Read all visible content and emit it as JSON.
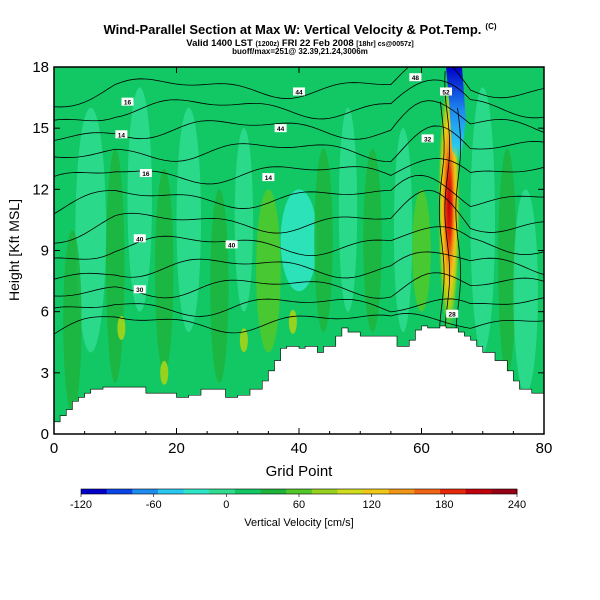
{
  "header": {
    "title": "Wind-Parallel Section at Max W: Vertical Velocity & Pot.Temp.",
    "title_mark": "(C)",
    "valid_main": "Valid 1400 LST",
    "valid_p1": "(1200z)",
    "valid_mid": "FRI 22 Feb 2008",
    "valid_p2": "[18hr] cs@0057z]",
    "location": "buoff/max=251@ 32.39,21.24,3006m"
  },
  "colorbar": {
    "label": "Vertical Velocity [cm/s]",
    "ticks": [
      "-120",
      "-60",
      "0",
      "60",
      "120",
      "180",
      "240"
    ],
    "colors": [
      "#0000c8",
      "#0a46e6",
      "#1e8cf0",
      "#28c8f0",
      "#30e6c8",
      "#30dc90",
      "#12c864",
      "#1eb43c",
      "#52c828",
      "#96d21e",
      "#d2dc1e",
      "#f0c818",
      "#f09614",
      "#f06414",
      "#e6280a",
      "#c0000a",
      "#960014"
    ]
  },
  "chart_data": {
    "type": "heatmap",
    "title": "Wind-Parallel Section at Max W: Vertical Velocity & Pot.Temp.",
    "xlabel": "Grid Point",
    "ylabel": "Height [Kft MSL]",
    "xlim": [
      0,
      80
    ],
    "ylim": [
      0,
      18
    ],
    "xticks": [
      0,
      20,
      40,
      60,
      80
    ],
    "yticks": [
      0,
      3,
      6,
      9,
      12,
      15,
      18
    ],
    "colorbar_range": [
      -120,
      240
    ],
    "colorbar_label": "Vertical Velocity [cm/s]",
    "terrain_top_kft": [
      [
        0,
        0.6
      ],
      [
        1,
        0.9
      ],
      [
        2,
        1.2
      ],
      [
        3,
        1.6
      ],
      [
        4,
        1.8
      ],
      [
        5,
        2.0
      ],
      [
        6,
        2.2
      ],
      [
        8,
        2.3
      ],
      [
        10,
        2.3
      ],
      [
        12,
        2.3
      ],
      [
        15,
        2.0
      ],
      [
        18,
        2.0
      ],
      [
        20,
        1.8
      ],
      [
        22,
        1.9
      ],
      [
        24,
        2.2
      ],
      [
        26,
        2.2
      ],
      [
        28,
        1.8
      ],
      [
        30,
        1.9
      ],
      [
        32,
        2.2
      ],
      [
        34,
        2.6
      ],
      [
        35,
        3.1
      ],
      [
        36,
        3.6
      ],
      [
        37,
        4.2
      ],
      [
        38,
        4.3
      ],
      [
        40,
        4.2
      ],
      [
        41,
        4.3
      ],
      [
        43,
        4.0
      ],
      [
        44,
        4.3
      ],
      [
        46,
        4.8
      ],
      [
        47,
        5.2
      ],
      [
        48,
        5.0
      ],
      [
        50,
        4.8
      ],
      [
        52,
        4.8
      ],
      [
        54,
        4.8
      ],
      [
        56,
        4.3
      ],
      [
        57,
        4.3
      ],
      [
        58,
        4.6
      ],
      [
        59,
        5.1
      ],
      [
        60,
        5.3
      ],
      [
        61,
        5.2
      ],
      [
        62,
        5.2
      ],
      [
        63,
        5.3
      ],
      [
        64,
        5.2
      ],
      [
        66,
        5.0
      ],
      [
        67,
        4.8
      ],
      [
        68,
        4.6
      ],
      [
        69,
        4.3
      ],
      [
        70,
        4.0
      ],
      [
        72,
        3.6
      ],
      [
        74,
        3.1
      ],
      [
        75,
        2.6
      ],
      [
        76,
        2.2
      ],
      [
        78,
        2.0
      ],
      [
        80,
        2.0
      ]
    ],
    "updraft_max": {
      "x": 64,
      "height_kft": 11,
      "value_cm_s": 240
    },
    "downdraft_min": {
      "x": 65,
      "height_kft": 17.2,
      "value_cm_s": -120
    },
    "contour_labels": [
      {
        "text": "16",
        "x": 12,
        "y": 16.3
      },
      {
        "text": "14",
        "x": 11,
        "y": 14.7
      },
      {
        "text": "16",
        "x": 15,
        "y": 12.8
      },
      {
        "text": "14",
        "x": 35,
        "y": 12.6
      },
      {
        "text": "44",
        "x": 40,
        "y": 16.8
      },
      {
        "text": "44",
        "x": 37,
        "y": 15.0
      },
      {
        "text": "40",
        "x": 14,
        "y": 9.6
      },
      {
        "text": "40",
        "x": 29,
        "y": 9.3
      },
      {
        "text": "30",
        "x": 14,
        "y": 7.1
      },
      {
        "text": "48",
        "x": 59,
        "y": 17.5
      },
      {
        "text": "52",
        "x": 64,
        "y": 16.8
      },
      {
        "text": "32",
        "x": 61,
        "y": 14.5
      },
      {
        "text": "28",
        "x": 65,
        "y": 5.9
      }
    ]
  }
}
